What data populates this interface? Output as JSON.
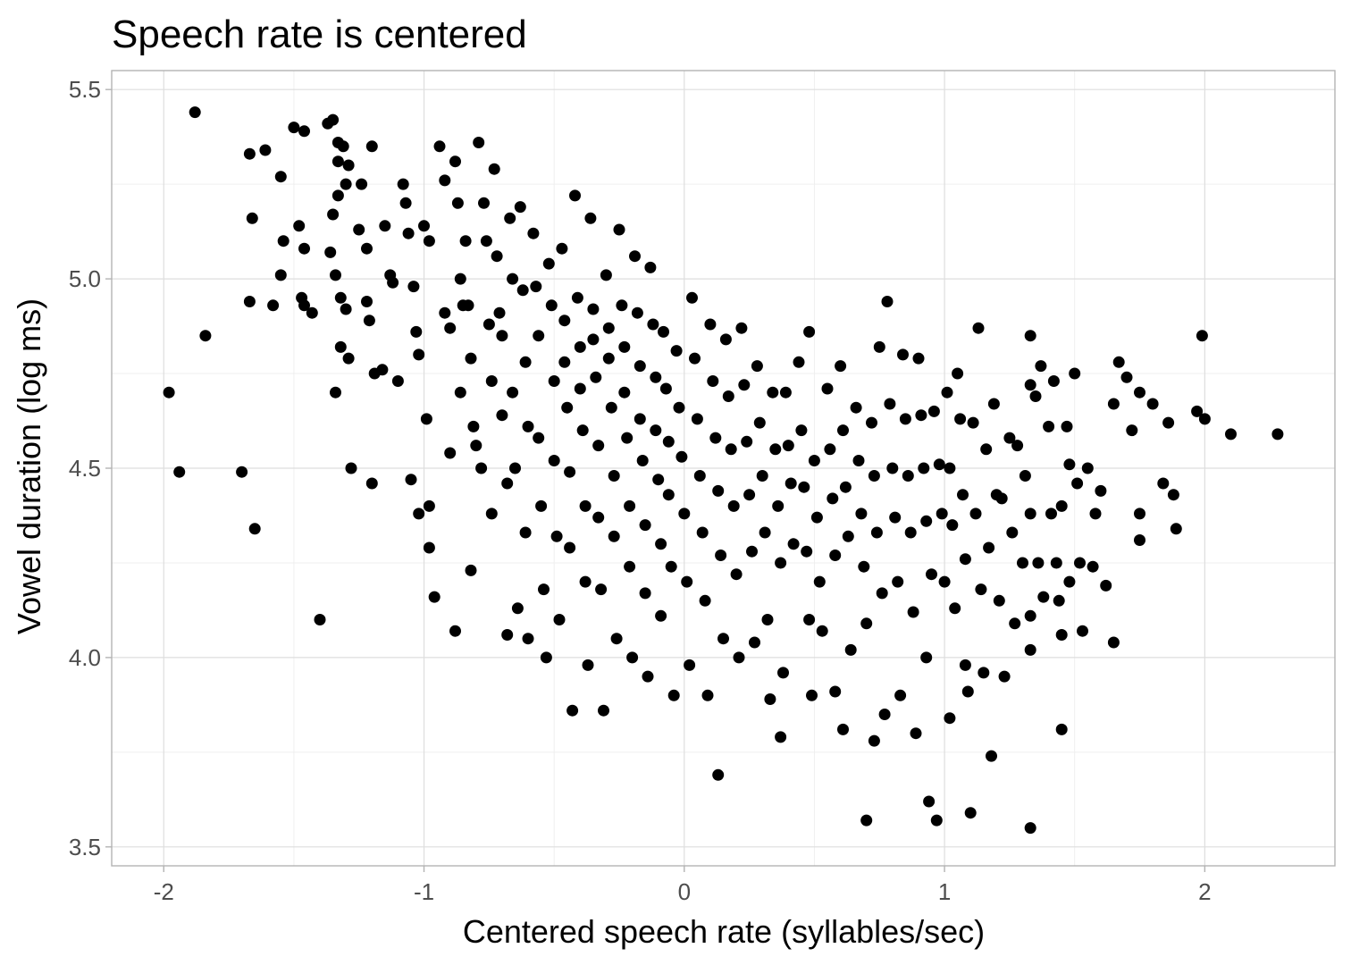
{
  "chart_data": {
    "type": "scatter",
    "title": "Speech rate is centered",
    "xlabel": "Centered speech rate (syllables/sec)",
    "ylabel": "Vowel duration (log ms)",
    "xlim": [
      -2.2,
      2.5
    ],
    "ylim": [
      3.45,
      5.55
    ],
    "x_ticks": [
      -2,
      -1,
      0,
      1,
      2
    ],
    "x_tick_labels": [
      "-2",
      "-1",
      "0",
      "1",
      "2"
    ],
    "y_ticks": [
      3.5,
      4.0,
      4.5,
      5.0,
      5.5
    ],
    "y_tick_labels": [
      "3.5",
      "4.0",
      "4.5",
      "5.0",
      "5.5"
    ],
    "grid": true,
    "legend": "none",
    "point_color": "#000000",
    "points_note_count": 1000,
    "points": [
      [
        -1.88,
        5.44
      ],
      [
        -1.98,
        4.7
      ],
      [
        -1.94,
        4.49
      ],
      [
        -1.84,
        4.85
      ],
      [
        -1.7,
        4.49
      ],
      [
        -1.65,
        4.34
      ],
      [
        -1.67,
        5.33
      ],
      [
        -1.66,
        5.16
      ],
      [
        -1.67,
        4.94
      ],
      [
        -1.61,
        5.34
      ],
      [
        -1.58,
        4.93
      ],
      [
        -1.55,
        5.27
      ],
      [
        -1.55,
        5.01
      ],
      [
        -1.54,
        5.1
      ],
      [
        -1.5,
        5.4
      ],
      [
        -1.46,
        5.39
      ],
      [
        -1.48,
        5.14
      ],
      [
        -1.46,
        5.08
      ],
      [
        -1.47,
        4.95
      ],
      [
        -1.46,
        4.93
      ],
      [
        -1.43,
        4.91
      ],
      [
        -1.4,
        4.1
      ],
      [
        -1.37,
        5.41
      ],
      [
        -1.35,
        5.42
      ],
      [
        -1.33,
        5.36
      ],
      [
        -1.33,
        5.31
      ],
      [
        -1.31,
        5.35
      ],
      [
        -1.29,
        5.3
      ],
      [
        -1.3,
        5.25
      ],
      [
        -1.33,
        5.22
      ],
      [
        -1.35,
        5.17
      ],
      [
        -1.36,
        5.07
      ],
      [
        -1.34,
        5.01
      ],
      [
        -1.32,
        4.95
      ],
      [
        -1.3,
        4.92
      ],
      [
        -1.32,
        4.82
      ],
      [
        -1.29,
        4.79
      ],
      [
        -1.34,
        4.7
      ],
      [
        -1.28,
        4.5
      ],
      [
        -1.25,
        5.13
      ],
      [
        -1.22,
        5.08
      ],
      [
        -1.24,
        5.25
      ],
      [
        -1.2,
        5.35
      ],
      [
        -1.22,
        4.94
      ],
      [
        -1.21,
        4.89
      ],
      [
        -1.19,
        4.75
      ],
      [
        -1.16,
        4.76
      ],
      [
        -1.2,
        4.46
      ],
      [
        -1.15,
        5.14
      ],
      [
        -1.13,
        5.01
      ],
      [
        -1.12,
        4.99
      ],
      [
        -1.1,
        4.73
      ],
      [
        -1.08,
        5.25
      ],
      [
        -1.07,
        5.2
      ],
      [
        -1.06,
        5.12
      ],
      [
        -1.04,
        4.98
      ],
      [
        -1.03,
        4.86
      ],
      [
        -1.02,
        4.8
      ],
      [
        -1.05,
        4.47
      ],
      [
        -1.02,
        4.38
      ],
      [
        -1.0,
        5.14
      ],
      [
        -0.98,
        5.1
      ],
      [
        -0.99,
        4.63
      ],
      [
        -0.98,
        4.4
      ],
      [
        -0.98,
        4.29
      ],
      [
        -0.96,
        4.16
      ],
      [
        -0.94,
        5.35
      ],
      [
        -0.92,
        5.26
      ],
      [
        -0.92,
        4.91
      ],
      [
        -0.9,
        4.87
      ],
      [
        -0.9,
        4.54
      ],
      [
        -0.88,
        5.31
      ],
      [
        -0.87,
        5.2
      ],
      [
        -0.86,
        5.0
      ],
      [
        -0.85,
        4.93
      ],
      [
        -0.86,
        4.7
      ],
      [
        -0.88,
        4.07
      ],
      [
        -0.84,
        5.1
      ],
      [
        -0.83,
        4.93
      ],
      [
        -0.82,
        4.79
      ],
      [
        -0.81,
        4.61
      ],
      [
        -0.8,
        4.56
      ],
      [
        -0.82,
        4.23
      ],
      [
        -0.79,
        5.36
      ],
      [
        -0.78,
        4.5
      ],
      [
        -0.77,
        5.2
      ],
      [
        -0.76,
        5.1
      ],
      [
        -0.75,
        4.88
      ],
      [
        -0.74,
        4.73
      ],
      [
        -0.74,
        4.38
      ],
      [
        -0.73,
        5.29
      ],
      [
        -0.72,
        5.06
      ],
      [
        -0.71,
        4.91
      ],
      [
        -0.7,
        4.85
      ],
      [
        -0.7,
        4.64
      ],
      [
        -0.68,
        4.46
      ],
      [
        -0.68,
        4.06
      ],
      [
        -0.67,
        5.16
      ],
      [
        -0.66,
        5.0
      ],
      [
        -0.66,
        4.7
      ],
      [
        -0.65,
        4.5
      ],
      [
        -0.64,
        4.13
      ],
      [
        -0.63,
        5.19
      ],
      [
        -0.62,
        4.97
      ],
      [
        -0.61,
        4.78
      ],
      [
        -0.6,
        4.61
      ],
      [
        -0.61,
        4.33
      ],
      [
        -0.6,
        4.05
      ],
      [
        -0.58,
        5.12
      ],
      [
        -0.57,
        4.98
      ],
      [
        -0.56,
        4.85
      ],
      [
        -0.56,
        4.58
      ],
      [
        -0.55,
        4.4
      ],
      [
        -0.54,
        4.18
      ],
      [
        -0.53,
        4.0
      ],
      [
        -0.52,
        5.04
      ],
      [
        -0.51,
        4.93
      ],
      [
        -0.5,
        4.73
      ],
      [
        -0.5,
        4.52
      ],
      [
        -0.49,
        4.32
      ],
      [
        -0.48,
        4.1
      ],
      [
        -0.47,
        5.08
      ],
      [
        -0.46,
        4.89
      ],
      [
        -0.46,
        4.78
      ],
      [
        -0.45,
        4.66
      ],
      [
        -0.44,
        4.49
      ],
      [
        -0.44,
        4.29
      ],
      [
        -0.43,
        3.86
      ],
      [
        -0.42,
        5.22
      ],
      [
        -0.41,
        4.95
      ],
      [
        -0.4,
        4.82
      ],
      [
        -0.4,
        4.71
      ],
      [
        -0.39,
        4.6
      ],
      [
        -0.38,
        4.4
      ],
      [
        -0.38,
        4.2
      ],
      [
        -0.37,
        3.98
      ],
      [
        -0.36,
        5.16
      ],
      [
        -0.35,
        4.92
      ],
      [
        -0.35,
        4.84
      ],
      [
        -0.34,
        4.74
      ],
      [
        -0.33,
        4.56
      ],
      [
        -0.33,
        4.37
      ],
      [
        -0.32,
        4.18
      ],
      [
        -0.31,
        3.86
      ],
      [
        -0.3,
        5.01
      ],
      [
        -0.29,
        4.87
      ],
      [
        -0.29,
        4.79
      ],
      [
        -0.28,
        4.66
      ],
      [
        -0.27,
        4.48
      ],
      [
        -0.27,
        4.32
      ],
      [
        -0.26,
        4.05
      ],
      [
        -0.25,
        5.13
      ],
      [
        -0.24,
        4.93
      ],
      [
        -0.23,
        4.82
      ],
      [
        -0.23,
        4.7
      ],
      [
        -0.22,
        4.58
      ],
      [
        -0.21,
        4.4
      ],
      [
        -0.21,
        4.24
      ],
      [
        -0.2,
        4.0
      ],
      [
        -0.19,
        5.06
      ],
      [
        -0.18,
        4.91
      ],
      [
        -0.17,
        4.77
      ],
      [
        -0.17,
        4.63
      ],
      [
        -0.16,
        4.52
      ],
      [
        -0.15,
        4.35
      ],
      [
        -0.15,
        4.17
      ],
      [
        -0.14,
        3.95
      ],
      [
        -0.13,
        5.03
      ],
      [
        -0.12,
        4.88
      ],
      [
        -0.11,
        4.74
      ],
      [
        -0.11,
        4.6
      ],
      [
        -0.1,
        4.47
      ],
      [
        -0.09,
        4.3
      ],
      [
        -0.09,
        4.11
      ],
      [
        -0.08,
        4.86
      ],
      [
        -0.07,
        4.71
      ],
      [
        -0.06,
        4.57
      ],
      [
        -0.06,
        4.43
      ],
      [
        -0.05,
        4.24
      ],
      [
        -0.04,
        3.9
      ],
      [
        -0.03,
        4.81
      ],
      [
        -0.02,
        4.66
      ],
      [
        -0.01,
        4.53
      ],
      [
        0.0,
        4.38
      ],
      [
        0.01,
        4.2
      ],
      [
        0.02,
        3.98
      ],
      [
        0.03,
        4.95
      ],
      [
        0.04,
        4.79
      ],
      [
        0.05,
        4.63
      ],
      [
        0.06,
        4.48
      ],
      [
        0.07,
        4.33
      ],
      [
        0.08,
        4.15
      ],
      [
        0.09,
        3.9
      ],
      [
        0.1,
        4.88
      ],
      [
        0.11,
        4.73
      ],
      [
        0.12,
        4.58
      ],
      [
        0.13,
        4.44
      ],
      [
        0.14,
        4.27
      ],
      [
        0.13,
        3.69
      ],
      [
        0.15,
        4.05
      ],
      [
        0.16,
        4.84
      ],
      [
        0.17,
        4.69
      ],
      [
        0.18,
        4.55
      ],
      [
        0.19,
        4.4
      ],
      [
        0.2,
        4.22
      ],
      [
        0.21,
        4.0
      ],
      [
        0.22,
        4.87
      ],
      [
        0.23,
        4.72
      ],
      [
        0.24,
        4.57
      ],
      [
        0.25,
        4.43
      ],
      [
        0.26,
        4.28
      ],
      [
        0.27,
        4.04
      ],
      [
        0.28,
        4.77
      ],
      [
        0.29,
        4.62
      ],
      [
        0.3,
        4.48
      ],
      [
        0.31,
        4.33
      ],
      [
        0.32,
        4.1
      ],
      [
        0.33,
        3.89
      ],
      [
        0.34,
        4.7
      ],
      [
        0.35,
        4.55
      ],
      [
        0.36,
        4.4
      ],
      [
        0.37,
        4.25
      ],
      [
        0.37,
        3.79
      ],
      [
        0.38,
        3.96
      ],
      [
        0.39,
        4.7
      ],
      [
        0.4,
        4.56
      ],
      [
        0.41,
        4.46
      ],
      [
        0.42,
        4.3
      ],
      [
        0.44,
        4.78
      ],
      [
        0.45,
        4.6
      ],
      [
        0.46,
        4.45
      ],
      [
        0.47,
        4.28
      ],
      [
        0.48,
        4.1
      ],
      [
        0.49,
        3.9
      ],
      [
        0.48,
        4.86
      ],
      [
        0.5,
        4.52
      ],
      [
        0.51,
        4.37
      ],
      [
        0.52,
        4.2
      ],
      [
        0.53,
        4.07
      ],
      [
        0.55,
        4.71
      ],
      [
        0.56,
        4.55
      ],
      [
        0.57,
        4.42
      ],
      [
        0.58,
        4.27
      ],
      [
        0.58,
        3.91
      ],
      [
        0.6,
        4.77
      ],
      [
        0.61,
        4.6
      ],
      [
        0.62,
        4.45
      ],
      [
        0.61,
        3.81
      ],
      [
        0.63,
        4.32
      ],
      [
        0.64,
        4.02
      ],
      [
        0.66,
        4.66
      ],
      [
        0.67,
        4.52
      ],
      [
        0.68,
        4.38
      ],
      [
        0.69,
        4.24
      ],
      [
        0.7,
        3.57
      ],
      [
        0.7,
        4.09
      ],
      [
        0.72,
        4.62
      ],
      [
        0.73,
        4.48
      ],
      [
        0.73,
        3.78
      ],
      [
        0.74,
        4.33
      ],
      [
        0.75,
        4.82
      ],
      [
        0.76,
        4.17
      ],
      [
        0.77,
        3.85
      ],
      [
        0.78,
        4.94
      ],
      [
        0.79,
        4.67
      ],
      [
        0.8,
        4.5
      ],
      [
        0.81,
        4.37
      ],
      [
        0.82,
        4.2
      ],
      [
        0.83,
        3.9
      ],
      [
        0.84,
        4.8
      ],
      [
        0.85,
        4.63
      ],
      [
        0.86,
        4.48
      ],
      [
        0.87,
        4.33
      ],
      [
        0.88,
        4.12
      ],
      [
        0.89,
        3.8
      ],
      [
        0.9,
        4.79
      ],
      [
        0.91,
        4.64
      ],
      [
        0.92,
        4.5
      ],
      [
        0.93,
        4.36
      ],
      [
        0.93,
        4.0
      ],
      [
        0.94,
        3.62
      ],
      [
        0.95,
        4.22
      ],
      [
        0.96,
        4.65
      ],
      [
        0.97,
        3.57
      ],
      [
        0.98,
        4.51
      ],
      [
        0.99,
        4.38
      ],
      [
        1.0,
        4.2
      ],
      [
        1.01,
        4.7
      ],
      [
        1.02,
        4.5
      ],
      [
        1.02,
        3.84
      ],
      [
        1.03,
        4.35
      ],
      [
        1.04,
        4.13
      ],
      [
        1.05,
        4.75
      ],
      [
        1.06,
        4.63
      ],
      [
        1.07,
        4.43
      ],
      [
        1.08,
        4.26
      ],
      [
        1.08,
        3.98
      ],
      [
        1.09,
        3.91
      ],
      [
        1.1,
        3.59
      ],
      [
        1.11,
        4.62
      ],
      [
        1.12,
        4.38
      ],
      [
        1.13,
        4.87
      ],
      [
        1.14,
        4.18
      ],
      [
        1.15,
        3.96
      ],
      [
        1.16,
        4.55
      ],
      [
        1.17,
        4.29
      ],
      [
        1.18,
        3.74
      ],
      [
        1.19,
        4.67
      ],
      [
        1.2,
        4.43
      ],
      [
        1.21,
        4.15
      ],
      [
        1.22,
        4.42
      ],
      [
        1.23,
        3.95
      ],
      [
        1.25,
        4.58
      ],
      [
        1.26,
        4.33
      ],
      [
        1.27,
        4.09
      ],
      [
        1.28,
        4.56
      ],
      [
        1.3,
        4.25
      ],
      [
        1.31,
        4.48
      ],
      [
        1.33,
        4.85
      ],
      [
        1.33,
        4.72
      ],
      [
        1.33,
        4.38
      ],
      [
        1.33,
        4.11
      ],
      [
        1.33,
        4.02
      ],
      [
        1.33,
        3.55
      ],
      [
        1.35,
        4.69
      ],
      [
        1.36,
        4.25
      ],
      [
        1.37,
        4.77
      ],
      [
        1.38,
        4.16
      ],
      [
        1.4,
        4.61
      ],
      [
        1.41,
        4.38
      ],
      [
        1.42,
        4.73
      ],
      [
        1.43,
        4.25
      ],
      [
        1.44,
        4.15
      ],
      [
        1.45,
        4.4
      ],
      [
        1.45,
        4.06
      ],
      [
        1.45,
        3.81
      ],
      [
        1.47,
        4.61
      ],
      [
        1.48,
        4.51
      ],
      [
        1.48,
        4.2
      ],
      [
        1.5,
        4.75
      ],
      [
        1.51,
        4.46
      ],
      [
        1.52,
        4.25
      ],
      [
        1.53,
        4.07
      ],
      [
        1.55,
        4.5
      ],
      [
        1.57,
        4.24
      ],
      [
        1.58,
        4.38
      ],
      [
        1.6,
        4.44
      ],
      [
        1.62,
        4.19
      ],
      [
        1.65,
        4.67
      ],
      [
        1.65,
        4.04
      ],
      [
        1.67,
        4.78
      ],
      [
        1.7,
        4.74
      ],
      [
        1.72,
        4.6
      ],
      [
        1.75,
        4.7
      ],
      [
        1.75,
        4.38
      ],
      [
        1.75,
        4.31
      ],
      [
        1.8,
        4.67
      ],
      [
        1.84,
        4.46
      ],
      [
        1.86,
        4.62
      ],
      [
        1.88,
        4.43
      ],
      [
        1.89,
        4.34
      ],
      [
        1.97,
        4.65
      ],
      [
        1.99,
        4.85
      ],
      [
        2.0,
        4.63
      ],
      [
        2.1,
        4.59
      ],
      [
        2.28,
        4.59
      ]
    ]
  }
}
